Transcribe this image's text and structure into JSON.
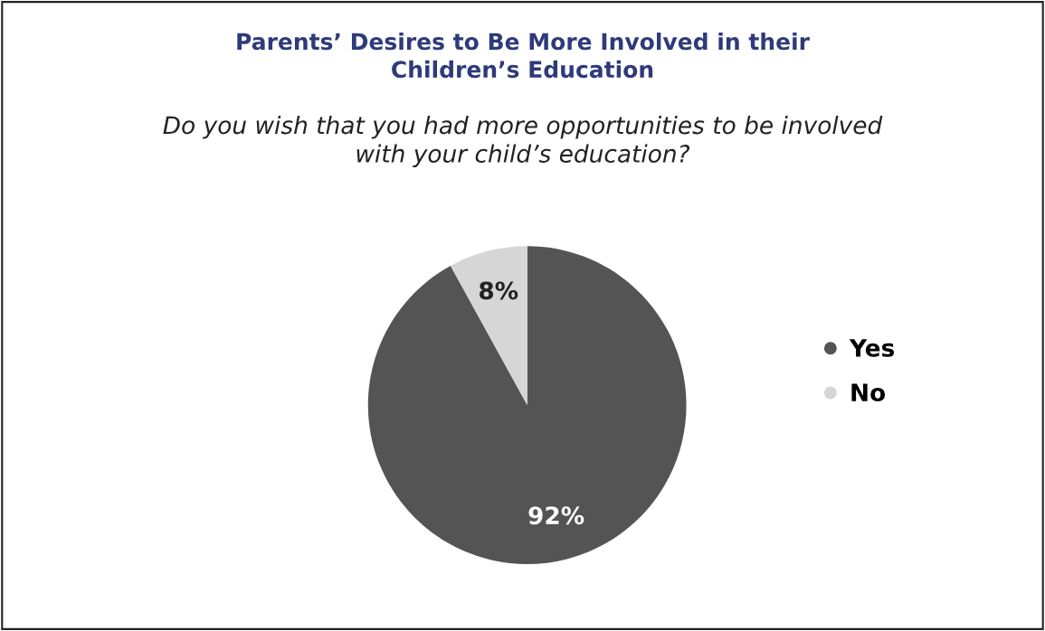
{
  "chart_data": {
    "type": "pie",
    "title": "Parents’ Desires to Be More Involved in their\nChildren’s Education",
    "subtitle": "Do you wish that you had more opportunities to be involved\nwith your child’s education?",
    "categories": [
      "Yes",
      "No"
    ],
    "values": [
      92,
      8
    ],
    "colors": [
      "#545454",
      "#d6d6d6"
    ],
    "value_labels": [
      "92%",
      "8%"
    ],
    "legend": "right"
  }
}
